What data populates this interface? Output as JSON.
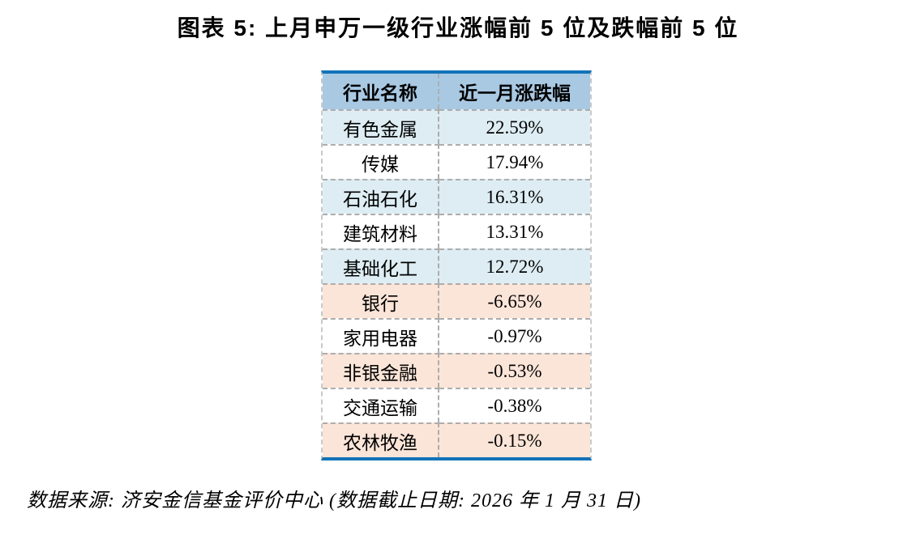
{
  "page": {
    "title": "图表 5: 上月申万一级行业涨幅前 5 位及跌幅前 5 位",
    "source_note": "数据来源: 济安金信基金评价中心 (数据截止日期: 2026 年 1 月 31 日)"
  },
  "chart_data": {
    "type": "table",
    "title": "图表 5: 上月申万一级行业涨幅前 5 位及跌幅前 5 位",
    "columns": [
      "行业名称",
      "近一月涨跌幅"
    ],
    "rows": [
      {
        "industry": "有色金属",
        "change": "22.59%",
        "group": "gainer",
        "tone": "blue"
      },
      {
        "industry": "传媒",
        "change": "17.94%",
        "group": "gainer",
        "tone": "white"
      },
      {
        "industry": "石油石化",
        "change": "16.31%",
        "group": "gainer",
        "tone": "blue"
      },
      {
        "industry": "建筑材料",
        "change": "13.31%",
        "group": "gainer",
        "tone": "white"
      },
      {
        "industry": "基础化工",
        "change": "12.72%",
        "group": "gainer",
        "tone": "blue"
      },
      {
        "industry": "银行",
        "change": "-6.65%",
        "group": "loser",
        "tone": "peach"
      },
      {
        "industry": "家用电器",
        "change": "-0.97%",
        "group": "loser",
        "tone": "white"
      },
      {
        "industry": "非银金融",
        "change": "-0.53%",
        "group": "loser",
        "tone": "peach"
      },
      {
        "industry": "交通运输",
        "change": "-0.38%",
        "group": "loser",
        "tone": "white"
      },
      {
        "industry": "农林牧渔",
        "change": "-0.15%",
        "group": "loser",
        "tone": "peach"
      }
    ]
  },
  "colors": {
    "accent": "#1273b9",
    "header_bg": "#a9c9e3",
    "gain_bg": "#ddedf3",
    "loss_bg": "#fbe5d8",
    "dash": "#adadad",
    "dash_outer": "#c9c9c9",
    "text": "#000000"
  }
}
